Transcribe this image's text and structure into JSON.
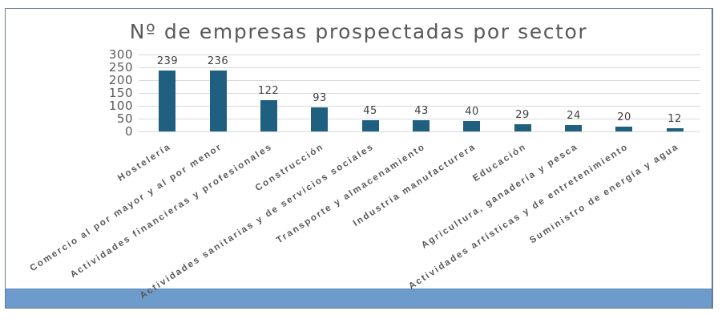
{
  "chart_data": {
    "type": "bar",
    "title": "Nº de empresas prospectadas por sector",
    "xlabel": "",
    "ylabel": "",
    "ylim": [
      0,
      300
    ],
    "yticks": [
      0,
      50,
      100,
      150,
      200,
      250,
      300
    ],
    "grid": true,
    "legend": "none",
    "bar_color": "#1f5f80",
    "data_labels": true,
    "categories": [
      "Hostelería",
      "Comercio al por mayor y al por menor",
      "Actividades financieras y profesionales",
      "Construcción",
      "Actividades sanitarias y de servicios sociales",
      "Transporte y almacenamiento",
      "Industria manufacturera",
      "Educación",
      "Agricultura, ganadería y pesca",
      "Actividades artísticas y de entretenimiento",
      "Suministro de energía y agua"
    ],
    "values": [
      239,
      236,
      122,
      93,
      45,
      43,
      40,
      29,
      24,
      20,
      12
    ]
  },
  "colors": {
    "bar": "#1f5f80",
    "footer_band": "#6d9bcc",
    "frame_border": "#6a7a90"
  }
}
